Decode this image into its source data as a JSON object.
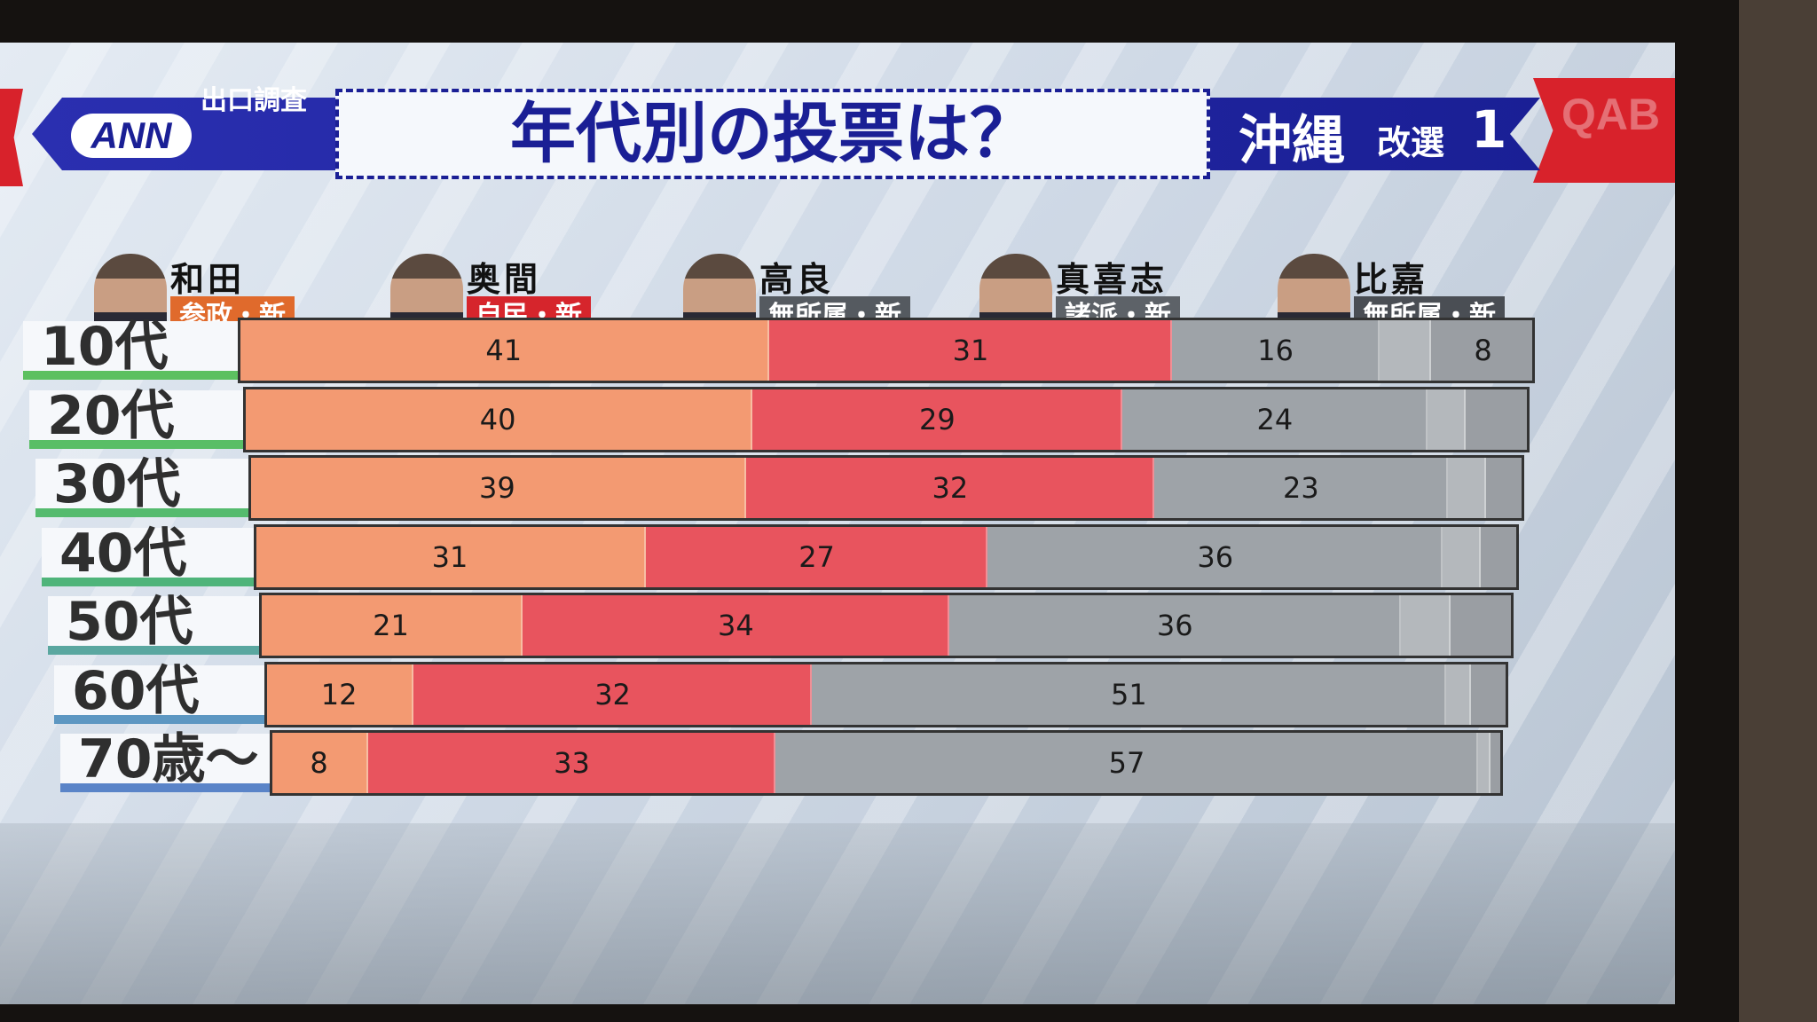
{
  "header": {
    "ann": "ANN",
    "ann_sub": "出口調査",
    "title": "年代別の投票は？",
    "region": "沖縄",
    "seat": "改選",
    "seat_num": "1",
    "station": "QAB"
  },
  "candidates": [
    {
      "name": "和田",
      "party": "参政・新",
      "color": "#e06a2c"
    },
    {
      "name": "奥間",
      "party": "自民・新",
      "color": "#d6252c"
    },
    {
      "name": "高良",
      "party": "無所属・新",
      "color": "#555a60"
    },
    {
      "name": "真喜志",
      "party": "諸派・新",
      "color": "#5d6268"
    },
    {
      "name": "比嘉",
      "party": "無所属・新",
      "color": "#4a4e54"
    }
  ],
  "chart_data": {
    "type": "bar",
    "stacked": true,
    "orientation": "horizontal",
    "title": "年代別の投票は？",
    "categories": [
      "10代",
      "20代",
      "30代",
      "40代",
      "50代",
      "60代",
      "70歳～"
    ],
    "series": [
      {
        "name": "和田",
        "color": "#f39a72",
        "values": [
          41,
          40,
          39,
          31,
          21,
          12,
          8
        ]
      },
      {
        "name": "奥間",
        "color": "#e8545e",
        "values": [
          31,
          29,
          32,
          27,
          34,
          32,
          33
        ]
      },
      {
        "name": "高良",
        "color": "#9ea3a8",
        "values": [
          16,
          24,
          23,
          36,
          36,
          51,
          57
        ]
      },
      {
        "name": "真喜志",
        "color": "#b4b8bc",
        "values": [
          4,
          3,
          3,
          3,
          4,
          2,
          1
        ]
      },
      {
        "name": "比嘉",
        "color": "#9a9ea3",
        "values": [
          8,
          5,
          3,
          3,
          5,
          3,
          1
        ]
      }
    ],
    "data_labels": [
      [
        "41",
        "31",
        "16",
        "",
        "8"
      ],
      [
        "40",
        "29",
        "24",
        "",
        ""
      ],
      [
        "39",
        "32",
        "23",
        "",
        ""
      ],
      [
        "31",
        "27",
        "36",
        "",
        ""
      ],
      [
        "21",
        "34",
        "36",
        "",
        ""
      ],
      [
        "12",
        "32",
        "51",
        "",
        ""
      ],
      [
        "8",
        "33",
        "57",
        "",
        ""
      ]
    ]
  }
}
